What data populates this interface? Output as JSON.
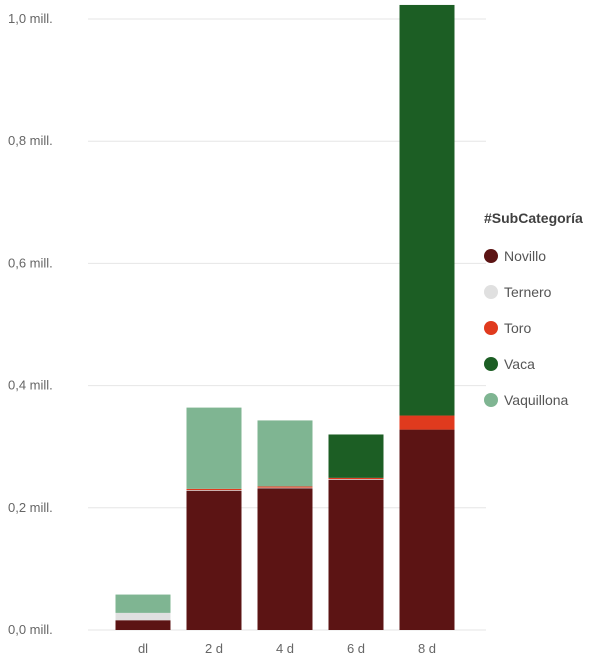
{
  "chart_data": {
    "type": "bar",
    "stacked": true,
    "categories": [
      "dl",
      "2 d",
      "4 d",
      "6 d",
      "8 d"
    ],
    "series": [
      {
        "name": "Novillo",
        "color": "#5c1414",
        "values": [
          0.016,
          0.228,
          0.232,
          0.246,
          0.328
        ]
      },
      {
        "name": "Ternero",
        "color": "#e0e0e0",
        "values": [
          0.012,
          0.001,
          0.001,
          0.001,
          0.0
        ]
      },
      {
        "name": "Toro",
        "color": "#e03a1e",
        "values": [
          0.0,
          0.002,
          0.002,
          0.002,
          0.023
        ]
      },
      {
        "name": "Vaca",
        "color": "#1c5e24",
        "values": [
          0.0,
          0.0,
          0.0,
          0.071,
          0.672
        ]
      },
      {
        "name": "Vaquillona",
        "color": "#7fb592",
        "values": [
          0.03,
          0.133,
          0.108,
          0.0,
          0.0
        ]
      }
    ],
    "yticks": [
      {
        "value": 0.0,
        "label": "0,0 mill."
      },
      {
        "value": 0.2,
        "label": "0,2 mill."
      },
      {
        "value": 0.4,
        "label": "0,4 mill."
      },
      {
        "value": 0.6,
        "label": "0,6 mill."
      },
      {
        "value": 0.8,
        "label": "0,8 mill."
      },
      {
        "value": 1.0,
        "label": "1,0 mill."
      }
    ],
    "ylim": [
      0,
      1.0
    ],
    "grid": true,
    "legend": {
      "title": "#SubCategoría",
      "position": "right"
    }
  }
}
